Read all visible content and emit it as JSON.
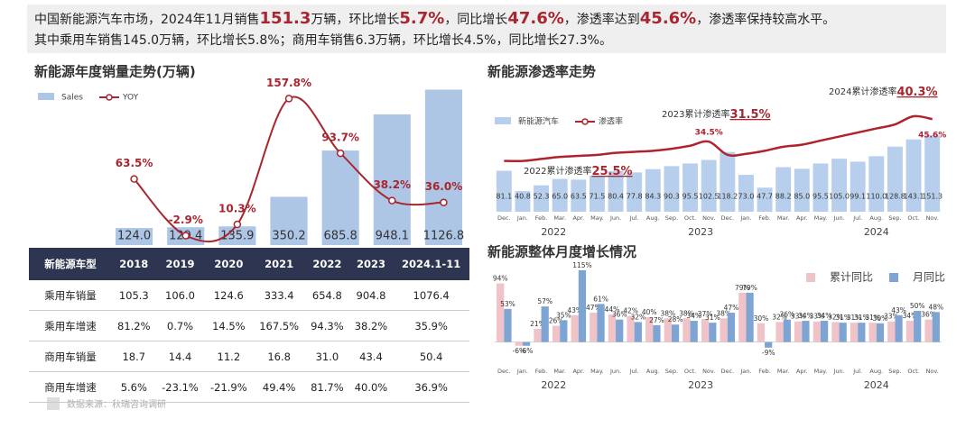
{
  "header": {
    "line1": [
      "中国新能源汽车市场，2024年11月销售",
      "151.3",
      "万辆，环比增长",
      "5.7%",
      "，同比增长",
      "47.6%",
      "，渗透率达到",
      "45.6%",
      "，渗透率保持较高水平。"
    ],
    "line2": "其中乘用车销售145.0万辆，环比增长5.8%；商用车销售6.3万辆，环比增长4.5%，同比增长27.3%。"
  },
  "chart_data": [
    {
      "type": "combo",
      "title": "新能源年度销量走势(万辆)",
      "categories": [
        "2018",
        "2019",
        "2020",
        "2021",
        "2022",
        "2023",
        "2024.1-11"
      ],
      "legend": "top-left",
      "ylim": [
        0,
        1150
      ],
      "y2lim": [
        -14,
        172
      ],
      "series": [
        {
          "name": "Sales",
          "color": "#aec6e6",
          "axis": "y",
          "values": [
            124.0,
            129.4,
            135.9,
            350.2,
            685.8,
            948.1,
            1126.8
          ],
          "value_labels": [
            "124.0",
            "129.4",
            "135.9",
            "350.2",
            "685.8",
            "948.1",
            "1126.8"
          ]
        },
        {
          "name": "YOY",
          "color": "#a8262f",
          "axis": "y2",
          "values": [
            63.5,
            -2.9,
            10.3,
            157.8,
            93.7,
            38.2,
            36.0
          ],
          "value_labels": [
            "63.5%",
            "-2.9%",
            "10.3%",
            "157.8%",
            "93.7%",
            "38.2%",
            "36.0%"
          ]
        }
      ]
    },
    {
      "type": "combo",
      "title": "新能源渗透率走势",
      "categories": [
        "Dec.",
        "Jan.",
        "Feb.",
        "Mar.",
        "Apr.",
        "May.",
        "Jun.",
        "Jul.",
        "Aug.",
        "Sep.",
        "Oct.",
        "Nov.",
        "Dec.",
        "Jan.",
        "Feb.",
        "Mar.",
        "Apr.",
        "May.",
        "Jun.",
        "Jul.",
        "Aug.",
        "Sep.",
        "Oct.",
        "Nov."
      ],
      "x_groups": [
        "2022",
        "2023",
        "2024"
      ],
      "legend": "top-left",
      "ylim": [
        0,
        205
      ],
      "y2lim": [
        0,
        51
      ],
      "series": [
        {
          "name": "新能源汽车",
          "color": "#b7cfec",
          "axis": "y",
          "values": [
            81.1,
            40.8,
            52.3,
            65.0,
            63.5,
            71.5,
            80.4,
            77.8,
            84.3,
            90.3,
            95.5,
            102.5,
            118.2,
            73.0,
            47.7,
            88.2,
            85.0,
            95.5,
            105.0,
            99.1,
            110.0,
            128.8,
            143.1,
            151.3
          ],
          "value_labels": [
            "81.1",
            "40.8",
            "52.3",
            "65.0",
            "63.5",
            "71.5",
            "80.4",
            "77.8",
            "84.3",
            "90.3",
            "95.5",
            "102.5",
            "118.2",
            "73.0",
            "47.7",
            "88.2",
            "85.0",
            "95.5",
            "105.0",
            "99.1",
            "110.0",
            "128.8",
            "143.1",
            "151.3"
          ]
        },
        {
          "name": "渗透率",
          "color": "#b0222c",
          "axis": "y2",
          "values": [
            25,
            25,
            26,
            27,
            27.5,
            28,
            29,
            29.5,
            30,
            31,
            32.5,
            34.5,
            28,
            28.5,
            30,
            32,
            33,
            35,
            37,
            39,
            41,
            43,
            47,
            45.6
          ],
          "value_labels": [
            null,
            null,
            null,
            null,
            null,
            null,
            null,
            null,
            null,
            null,
            null,
            "34.5%",
            null,
            null,
            null,
            null,
            null,
            null,
            null,
            null,
            null,
            null,
            null,
            "45.6%"
          ]
        }
      ],
      "annotations": [
        {
          "text": "2022累计渗透率",
          "value": "25.5%"
        },
        {
          "text": "2023累计渗透率",
          "value": "31.5%"
        },
        {
          "text": "2024累计渗透率",
          "value": "40.3%"
        }
      ]
    },
    {
      "type": "bar",
      "title": "新能源整体月度增长情况",
      "categories": [
        "Dec.",
        "Jan.",
        "Feb.",
        "Mar.",
        "Apr.",
        "May.",
        "Jun.",
        "Jul.",
        "Aug.",
        "Sep.",
        "Oct.",
        "Nov.",
        "Dec.",
        "Jan.",
        "Feb.",
        "Mar.",
        "Apr.",
        "May.",
        "Jun.",
        "Jul.",
        "Aug.",
        "Sep.",
        "Oct.",
        "Nov."
      ],
      "x_groups": [
        "2022",
        "2023",
        "2024"
      ],
      "legend": "top-right",
      "ylim": [
        -15,
        125
      ],
      "series": [
        {
          "name": "累计同比",
          "color": "#f0c3c8",
          "values": [
            94,
            -6,
            21,
            26,
            43,
            47,
            44,
            42,
            40,
            38,
            38,
            37,
            38,
            79,
            30,
            32,
            33,
            33,
            32,
            31,
            31,
            33,
            34,
            36
          ],
          "value_labels": [
            "94%",
            "-6%",
            "21%",
            "26%",
            "43%",
            "47%",
            "44%",
            "42%",
            "40%",
            "38%",
            "38%",
            "37%",
            "38%",
            "79%",
            "30%",
            "32%",
            "33%",
            "33%",
            "32%",
            "31%",
            "31%",
            "33%",
            "34%",
            "36%"
          ]
        },
        {
          "name": "月同比",
          "color": "#7ea4d4",
          "values": [
            53,
            -6,
            57,
            35,
            115,
            61,
            36,
            32,
            27,
            28,
            34,
            31,
            47,
            79,
            -9,
            36,
            34,
            34,
            31,
            31,
            30,
            43,
            50,
            48
          ],
          "value_labels": [
            "53%",
            "-6%",
            "57%",
            "35%",
            "115%",
            "61%",
            "36%",
            "32%",
            "27%",
            "28%",
            "34%",
            "31%",
            "47%",
            "79%",
            "-9%",
            "36%",
            "34%",
            "34%",
            "31%",
            "31%",
            "30%",
            "43%",
            "50%",
            "48%"
          ]
        }
      ]
    }
  ],
  "table": {
    "header_label": "新能源车型",
    "rows": [
      [
        "乘用车销量",
        "105.3",
        "106.0",
        "124.6",
        "333.4",
        "654.8",
        "904.8",
        "1076.4"
      ],
      [
        "乘用车增速",
        "81.2%",
        "0.7%",
        "14.5%",
        "167.5%",
        "94.3%",
        "38.2%",
        "35.9%"
      ],
      [
        "商用车销量",
        "18.7",
        "14.4",
        "11.2",
        "16.8",
        "31.0",
        "43.4",
        "50.4"
      ],
      [
        "商用车增速",
        "5.6%",
        "-23.1%",
        "-21.9%",
        "49.4%",
        "81.7%",
        "40.0%",
        "36.9%"
      ]
    ]
  },
  "footer": "数据来源：秋瑞咨询调研"
}
